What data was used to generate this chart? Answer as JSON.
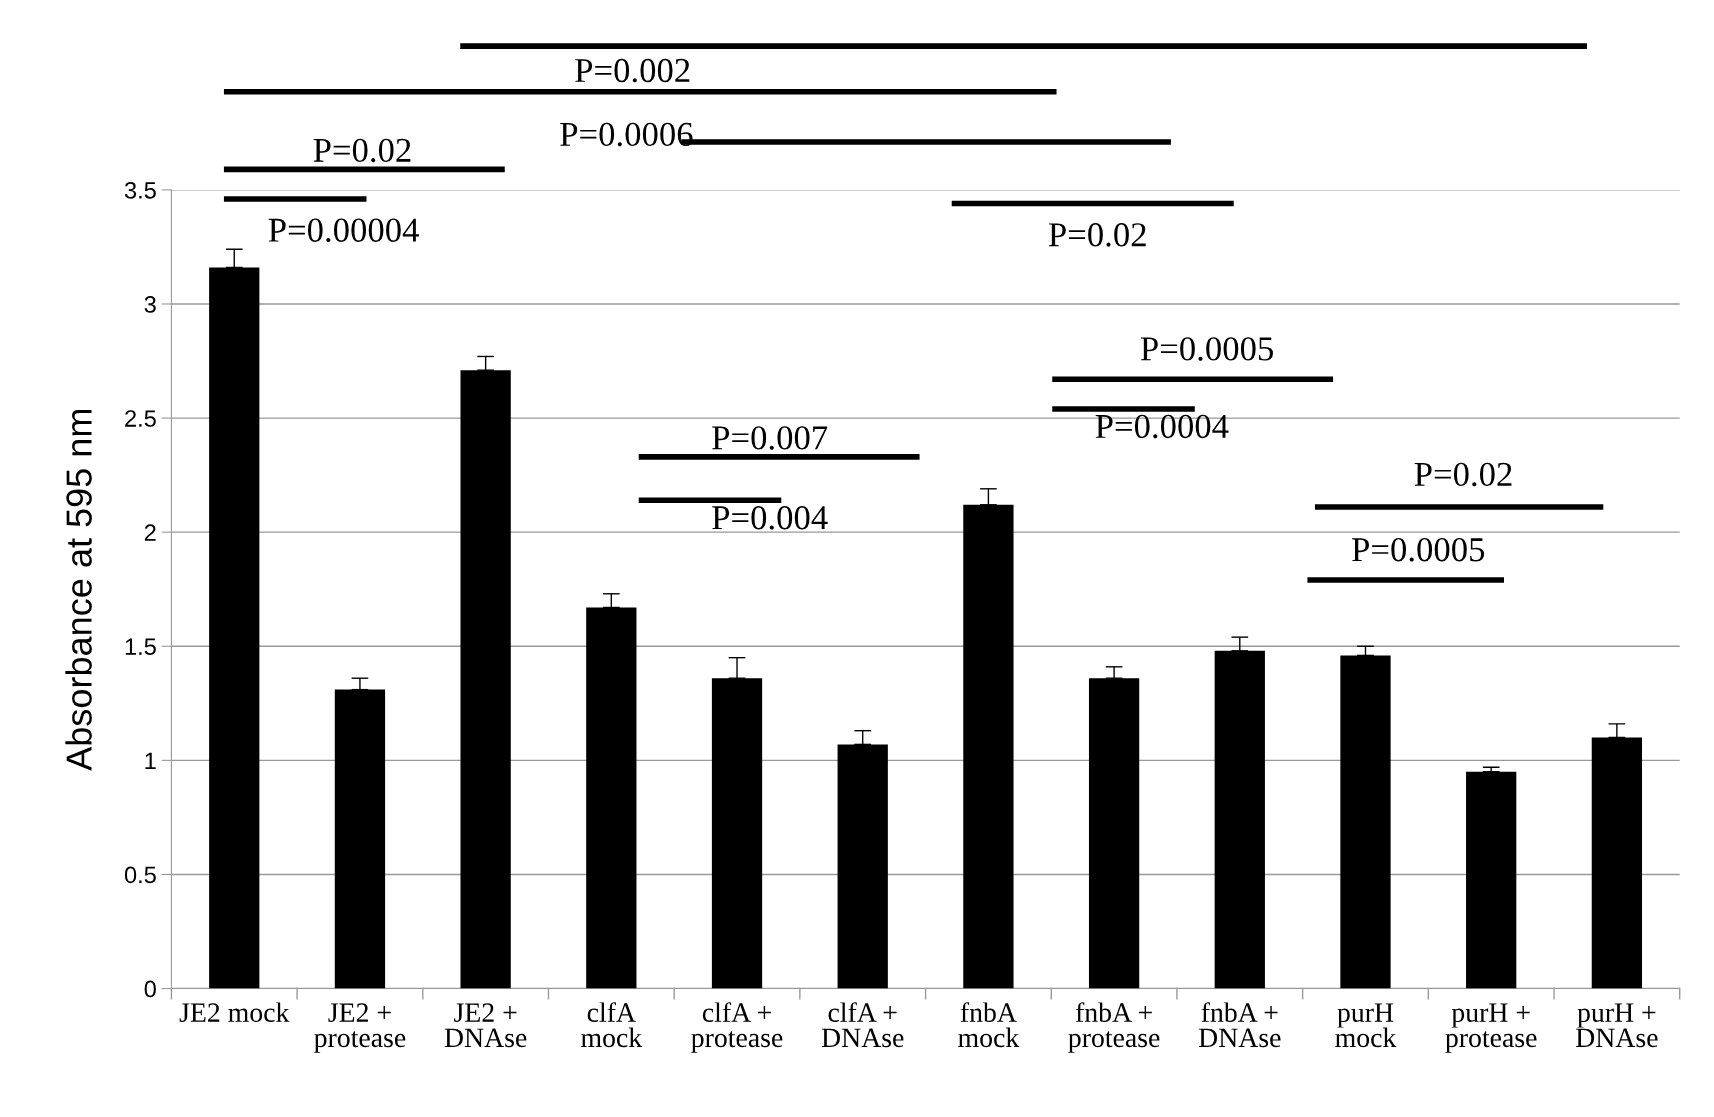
{
  "chart_data": {
    "type": "bar",
    "ylabel": "Absorbance at 595 nm",
    "categories": [
      "JE2 mock",
      "JE2 +\nprotease",
      "JE2 +\nDNAse",
      "clfA\nmock",
      "clfA +\nprotease",
      "clfA +\nDNAse",
      "fnbA\nmock",
      "fnbA +\nprotease",
      "fnbA +\nDNAse",
      "purH\nmock",
      "purH +\nprotease",
      "purH +\nDNAse"
    ],
    "values": [
      3.16,
      1.31,
      2.71,
      1.67,
      1.36,
      1.07,
      2.12,
      1.36,
      1.48,
      1.46,
      0.95,
      1.1
    ],
    "errors": [
      [
        3.16,
        3.24
      ],
      [
        1.31,
        1.36
      ],
      [
        2.71,
        2.77
      ],
      [
        1.67,
        1.73
      ],
      [
        1.36,
        1.45
      ],
      [
        1.07,
        1.13
      ],
      [
        2.12,
        2.19
      ],
      [
        1.36,
        1.41
      ],
      [
        1.48,
        1.54
      ],
      [
        1.46,
        1.5
      ],
      [
        0.95,
        0.97
      ],
      [
        1.1,
        1.16
      ]
    ],
    "color": "#000000",
    "ylim": [
      0,
      3.5
    ],
    "yticks": [
      0,
      0.5,
      1,
      1.5,
      2,
      2.5,
      3,
      3.5
    ],
    "grid": "y",
    "legend": false,
    "annotations": [
      "P=0.002",
      "P=0.0006",
      "P=0.02",
      "P=0.00004",
      "P=0.02",
      "P=0.0005",
      "P=0.0004",
      "P=0.007",
      "P=0.004",
      "P=0.02",
      "P=0.0005"
    ]
  }
}
